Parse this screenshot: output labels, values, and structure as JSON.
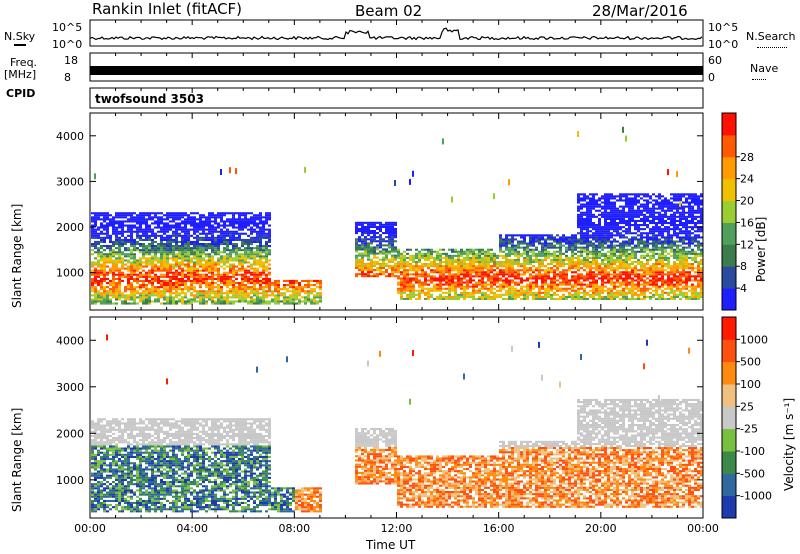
{
  "header": {
    "station": "Rankin Inlet (fitACF)",
    "beam": "Beam 02",
    "date": "28/Mar/2016"
  },
  "noise_panel": {
    "left_label": "N.Sky",
    "right_label": "N.Search",
    "left_ticks": [
      "10^5",
      "10^0"
    ],
    "right_ticks": [
      "10^5",
      "10^0"
    ]
  },
  "freq_panel": {
    "left_label": "Freq.",
    "left_unit": "[MHz]",
    "left_ticks": [
      "18",
      "8"
    ],
    "right_label": "Nave",
    "right_ticks": [
      "60",
      "0"
    ]
  },
  "cpid": {
    "label": "CPID",
    "value": "twofsound 3503"
  },
  "chart_data": [
    {
      "type": "heatmap",
      "title": "",
      "ylabel": "Slant Range [km]",
      "xlabel": "Time UT",
      "x_ticks": [
        "00:00",
        "04:00",
        "08:00",
        "12:00",
        "16:00",
        "20:00",
        "00:00"
      ],
      "y_ticks": [
        "1000",
        "2000",
        "3000",
        "4000"
      ],
      "ylim": [
        180,
        4500
      ],
      "colorbar": {
        "label": "Power [dB]",
        "ticks": [
          "4",
          "8",
          "12",
          "16",
          "20",
          "24",
          "28"
        ],
        "colors": [
          "#1e1eff",
          "#2a4aa0",
          "#3a7d4a",
          "#4ea05a",
          "#9acd32",
          "#f0c000",
          "#ff9a00",
          "#ff5a00",
          "#ff1000"
        ]
      }
    },
    {
      "type": "heatmap",
      "title": "",
      "ylabel": "Slant Range [km]",
      "xlabel": "Time UT",
      "x_ticks": [
        "00:00",
        "04:00",
        "08:00",
        "12:00",
        "16:00",
        "20:00",
        "00:00"
      ],
      "y_ticks": [
        "1000",
        "2000",
        "3000",
        "4000"
      ],
      "ylim": [
        180,
        4500
      ],
      "colorbar": {
        "label": "Velocity [m s⁻¹]",
        "ticks": [
          "1000",
          "500",
          "100",
          "25",
          "-25",
          "-100",
          "-500",
          "-1000"
        ],
        "colors": [
          "#1e3ab0",
          "#2e6aa0",
          "#3c8a4a",
          "#7ac040",
          "#c8c8c8",
          "#f0c080",
          "#ff8a10",
          "#ff5010",
          "#ff1a00"
        ]
      }
    }
  ],
  "xlabel": "Time UT"
}
